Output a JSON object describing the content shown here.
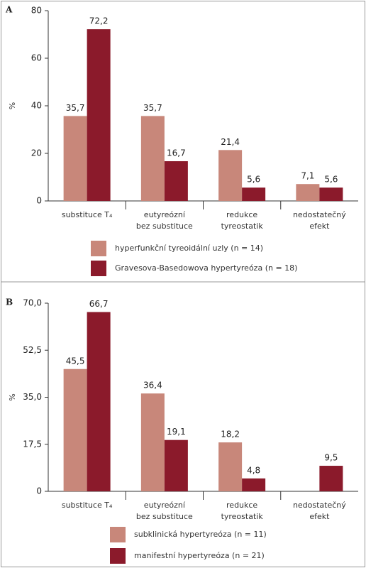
{
  "chart_data": [
    {
      "type": "bar",
      "panel": "A",
      "ylabel": "%",
      "categories": [
        [
          "substituce T₄"
        ],
        [
          "eutyreózní",
          "bez substituce"
        ],
        [
          "redukce",
          "tyreostatik"
        ],
        [
          "nedostatečný",
          "efekt"
        ]
      ],
      "series": [
        {
          "name": "hyperfunkční tyreoidální uzly (n = 14)",
          "color": "#c8877a",
          "values": [
            35.7,
            35.7,
            21.4,
            7.1
          ],
          "value_labels": [
            "35,7",
            "35,7",
            "21,4",
            "7,1"
          ]
        },
        {
          "name": "Gravesova-Basedowova hypertyreóza (n = 18)",
          "color": "#8b1a2b",
          "values": [
            72.2,
            16.7,
            5.6,
            5.6
          ],
          "value_labels": [
            "72,2",
            "16,7",
            "5,6",
            "5,6"
          ]
        }
      ],
      "ylim": [
        0,
        80
      ],
      "yticks": [
        0,
        20,
        40,
        60,
        80
      ]
    },
    {
      "type": "bar",
      "panel": "B",
      "ylabel": "%",
      "categories": [
        [
          "substituce T₄"
        ],
        [
          "eutyreózní",
          "bez substituce"
        ],
        [
          "redukce",
          "tyreostatik"
        ],
        [
          "nedostatečný",
          "efekt"
        ]
      ],
      "series": [
        {
          "name": "subklinická hypertyreóza (n = 11)",
          "color": "#c8877a",
          "values": [
            45.5,
            36.4,
            18.2,
            null
          ],
          "value_labels": [
            "45,5",
            "36,4",
            "18,2",
            null
          ]
        },
        {
          "name": "manifestní hypertyreóza (n = 21)",
          "color": "#8b1a2b",
          "values": [
            66.7,
            19.1,
            4.8,
            9.5
          ],
          "value_labels": [
            "66,7",
            "19,1",
            "4,8",
            "9,5"
          ]
        }
      ],
      "ylim": [
        0,
        70
      ],
      "yticks": [
        0,
        {
          "value": 17.5,
          "label": "17,5"
        },
        {
          "value": 35,
          "label": "35,0"
        },
        {
          "value": 52.5,
          "label": "52,5"
        },
        {
          "value": 70,
          "label": "70,0"
        }
      ]
    }
  ]
}
